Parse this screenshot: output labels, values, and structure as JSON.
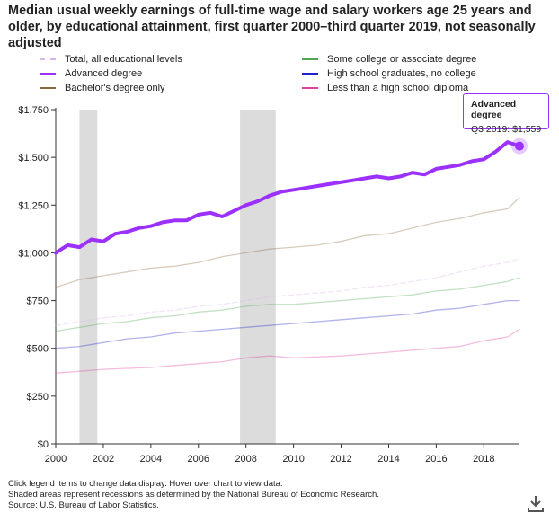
{
  "title": "Median usual weekly earnings of full-time wage and salary workers age 25 years and older, by educational attainment, first quarter 2000–third quarter 2019, not seasonally adjusted",
  "legend": [
    {
      "label": "Total, all educational levels",
      "color": "#d8b8e8",
      "style": "dashed"
    },
    {
      "label": "Some college or associate degree",
      "color": "#4fa84f",
      "style": "solid"
    },
    {
      "label": "Advanced degree",
      "color": "#9b30ff",
      "style": "solid"
    },
    {
      "label": "High school graduates, no college",
      "color": "#2222cc",
      "style": "solid"
    },
    {
      "label": "Bachelor's degree only",
      "color": "#8b6a3e",
      "style": "solid"
    },
    {
      "label": "Less than a high school diploma",
      "color": "#e040a0",
      "style": "solid"
    }
  ],
  "tooltip": {
    "title": "Advanced degree",
    "value": "Q3 2019: $1,559"
  },
  "footer": {
    "line1": "Click legend items to change data display. Hover over chart to view data.",
    "line2": "Shaded areas represent recessions as determined by the National Bureau of Economic Research.",
    "line3": "Source: U.S. Bureau of Labor Statistics."
  },
  "icons": {
    "download": "download-icon"
  },
  "chart_data": {
    "type": "line",
    "xlabel": "",
    "ylabel": "",
    "x_range": [
      2000.0,
      2019.5
    ],
    "ylim": [
      0,
      1750
    ],
    "y_ticks": [
      {
        "value": 0,
        "label": "$0"
      },
      {
        "value": 250,
        "label": "$250"
      },
      {
        "value": 500,
        "label": "$500"
      },
      {
        "value": 750,
        "label": "$750"
      },
      {
        "value": 1000,
        "label": "$1,000"
      },
      {
        "value": 1250,
        "label": "$1,250"
      },
      {
        "value": 1500,
        "label": "$1,500"
      },
      {
        "value": 1750,
        "label": "$1,750"
      }
    ],
    "x_ticks": [
      {
        "value": 2000,
        "label": "2000"
      },
      {
        "value": 2002,
        "label": "2002"
      },
      {
        "value": 2004,
        "label": "2004"
      },
      {
        "value": 2006,
        "label": "2006"
      },
      {
        "value": 2008,
        "label": "2008"
      },
      {
        "value": 2010,
        "label": "2010"
      },
      {
        "value": 2012,
        "label": "2012"
      },
      {
        "value": 2014,
        "label": "2014"
      },
      {
        "value": 2016,
        "label": "2016"
      },
      {
        "value": 2018,
        "label": "2018"
      }
    ],
    "recessions": [
      [
        2001.0,
        2001.75
      ],
      [
        2007.75,
        2009.25
      ]
    ],
    "highlighted_series": "Advanced degree",
    "series": [
      {
        "name": "Advanced degree",
        "color": "#9b30ff",
        "faded": false,
        "x": [
          2000,
          2000.5,
          2001,
          2001.5,
          2002,
          2002.5,
          2003,
          2003.5,
          2004,
          2004.5,
          2005,
          2005.5,
          2006,
          2006.5,
          2007,
          2007.5,
          2008,
          2008.5,
          2009,
          2009.5,
          2010,
          2010.5,
          2011,
          2011.5,
          2012,
          2012.5,
          2013,
          2013.5,
          2014,
          2014.5,
          2015,
          2015.5,
          2016,
          2016.5,
          2017,
          2017.5,
          2018,
          2018.5,
          2019,
          2019.5
        ],
        "values": [
          1000,
          1040,
          1030,
          1070,
          1060,
          1100,
          1110,
          1130,
          1140,
          1160,
          1170,
          1170,
          1200,
          1210,
          1190,
          1220,
          1250,
          1270,
          1300,
          1320,
          1330,
          1340,
          1350,
          1360,
          1370,
          1380,
          1390,
          1400,
          1390,
          1400,
          1420,
          1410,
          1440,
          1450,
          1460,
          1480,
          1490,
          1530,
          1580,
          1559
        ]
      },
      {
        "name": "Bachelor's degree only",
        "color": "#8b6a3e",
        "faded": true,
        "x": [
          2000,
          2001,
          2002,
          2003,
          2004,
          2005,
          2006,
          2007,
          2008,
          2009,
          2010,
          2011,
          2012,
          2013,
          2014,
          2015,
          2016,
          2017,
          2018,
          2019,
          2019.5
        ],
        "values": [
          820,
          860,
          880,
          900,
          920,
          930,
          950,
          980,
          1000,
          1020,
          1030,
          1040,
          1060,
          1090,
          1100,
          1130,
          1160,
          1180,
          1210,
          1230,
          1290
        ]
      },
      {
        "name": "Total, all educational levels",
        "color": "#d8b8e8",
        "faded": true,
        "x": [
          2000,
          2001,
          2002,
          2003,
          2004,
          2005,
          2006,
          2007,
          2008,
          2009,
          2010,
          2011,
          2012,
          2013,
          2014,
          2015,
          2016,
          2017,
          2018,
          2019,
          2019.5
        ],
        "values": [
          620,
          640,
          660,
          670,
          690,
          700,
          720,
          730,
          750,
          770,
          780,
          790,
          800,
          820,
          830,
          850,
          870,
          900,
          930,
          950,
          970
        ]
      },
      {
        "name": "Some college or associate degree",
        "color": "#4fa84f",
        "faded": true,
        "x": [
          2000,
          2001,
          2002,
          2003,
          2004,
          2005,
          2006,
          2007,
          2008,
          2009,
          2010,
          2011,
          2012,
          2013,
          2014,
          2015,
          2016,
          2017,
          2018,
          2019,
          2019.5
        ],
        "values": [
          590,
          610,
          630,
          640,
          660,
          670,
          690,
          700,
          720,
          730,
          730,
          740,
          750,
          760,
          770,
          780,
          800,
          810,
          830,
          850,
          870
        ]
      },
      {
        "name": "High school graduates, no college",
        "color": "#2222cc",
        "faded": true,
        "x": [
          2000,
          2001,
          2002,
          2003,
          2004,
          2005,
          2006,
          2007,
          2008,
          2009,
          2010,
          2011,
          2012,
          2013,
          2014,
          2015,
          2016,
          2017,
          2018,
          2019,
          2019.5
        ],
        "values": [
          500,
          510,
          530,
          550,
          560,
          580,
          590,
          600,
          610,
          620,
          630,
          640,
          650,
          660,
          670,
          680,
          700,
          710,
          730,
          750,
          750
        ]
      },
      {
        "name": "Less than a high school diploma",
        "color": "#e040a0",
        "faded": true,
        "x": [
          2000,
          2001,
          2002,
          2003,
          2004,
          2005,
          2006,
          2007,
          2008,
          2009,
          2010,
          2011,
          2012,
          2013,
          2014,
          2015,
          2016,
          2017,
          2018,
          2019,
          2019.5
        ],
        "values": [
          370,
          380,
          390,
          395,
          400,
          410,
          420,
          430,
          450,
          460,
          450,
          455,
          460,
          470,
          480,
          490,
          500,
          510,
          540,
          560,
          600
        ]
      }
    ]
  }
}
